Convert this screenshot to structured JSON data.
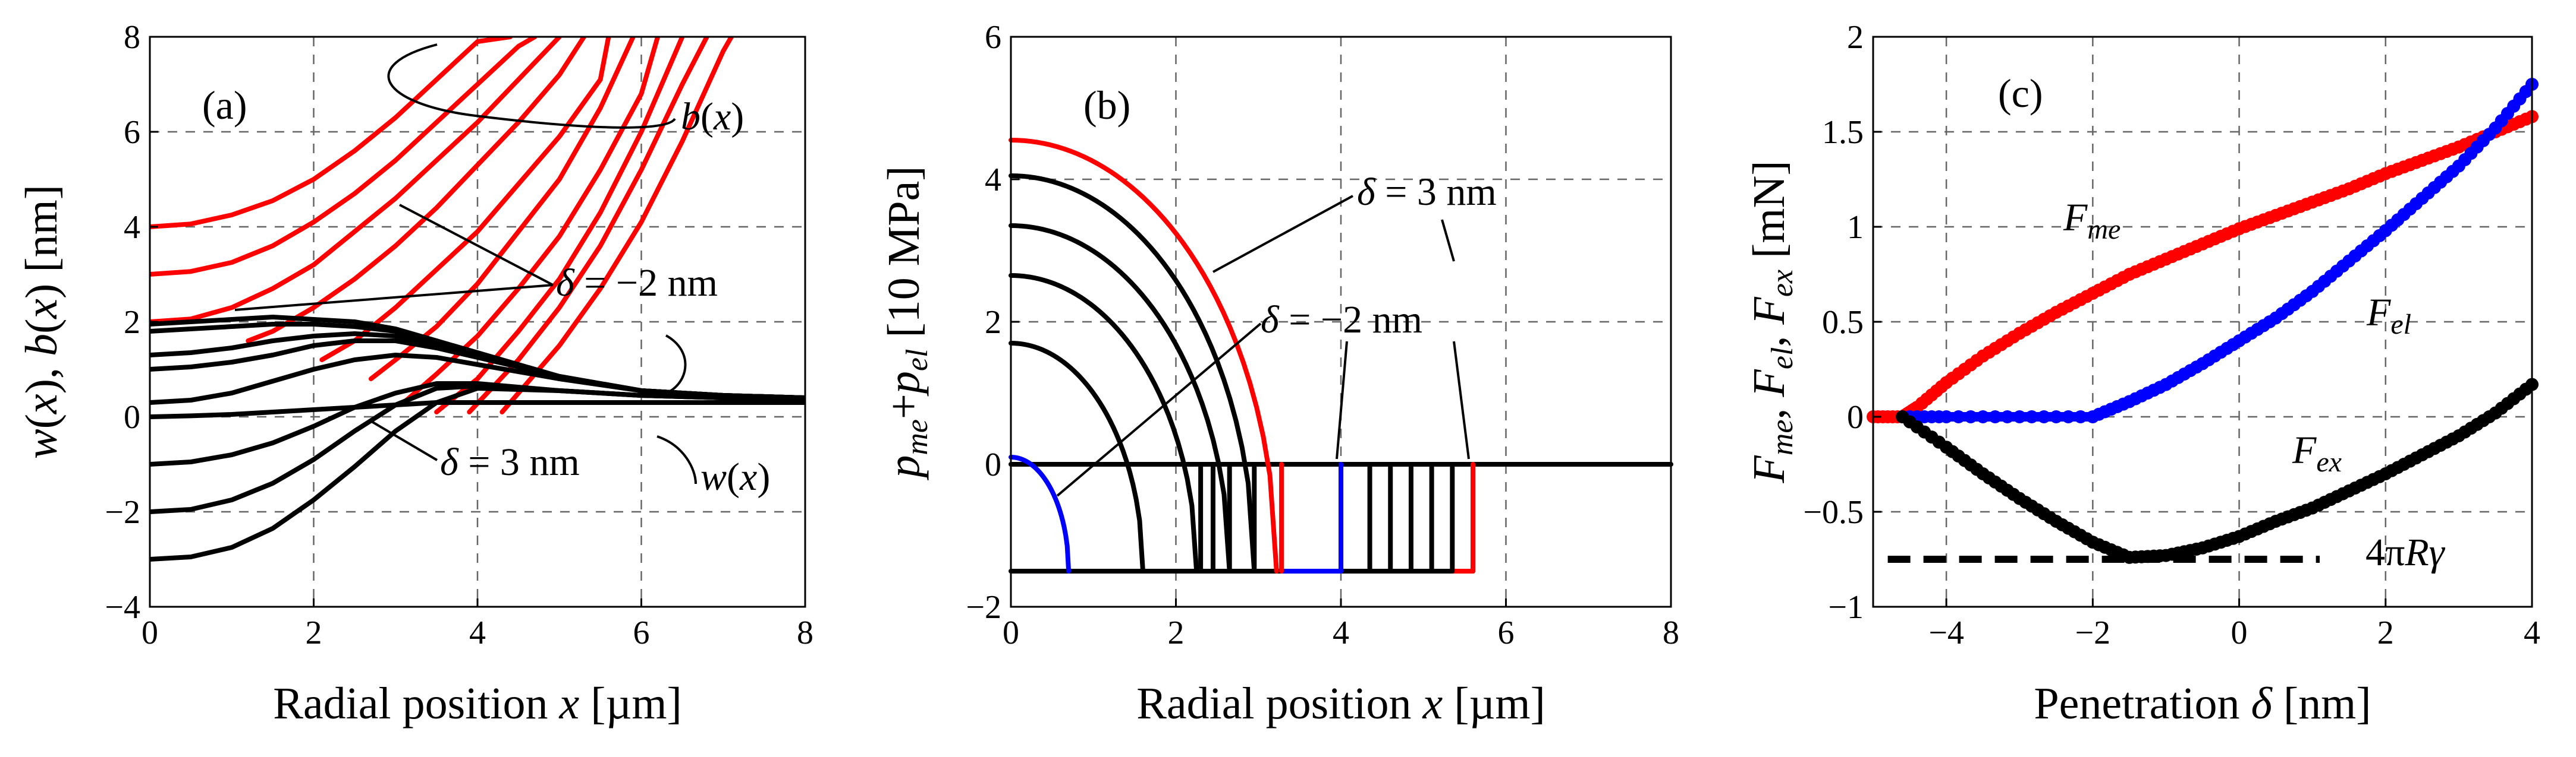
{
  "colors": {
    "red": "#ff0000",
    "black": "#000000",
    "blue": "#0000ff",
    "grid": "#666666"
  },
  "chart_data": [
    {
      "id": "a",
      "type": "line",
      "panel_label": "(a)",
      "xlabel": "Radial position x [µm]",
      "ylabel": "w(x), b(x) [nm]",
      "xlim": [
        0,
        8
      ],
      "ylim": [
        -4,
        8
      ],
      "xticks": [
        0,
        2,
        4,
        6,
        8
      ],
      "yticks": [
        -4,
        -2,
        0,
        2,
        4,
        6,
        8
      ],
      "xtick_labels": [
        "0",
        "2",
        "4",
        "6",
        "8"
      ],
      "ytick_labels": [
        "−4",
        "−2",
        "0",
        "2",
        "4",
        "6",
        "8"
      ],
      "annotations": {
        "delta_neg": "δ = −2 nm",
        "delta_pos": "δ = 3 nm",
        "b_label": "b(x)",
        "w_label": "w(x)"
      },
      "series": [
        {
          "name": "b(x) δ=-2 nm",
          "color": "red",
          "x": [
            0,
            0.5,
            1,
            1.5,
            2,
            2.5,
            3,
            3.5,
            4,
            4.4
          ],
          "y": [
            4,
            4.06,
            4.25,
            4.55,
            5.0,
            5.6,
            6.3,
            7.1,
            7.9,
            8
          ]
        },
        {
          "name": "b(x)",
          "color": "red",
          "x": [
            0,
            0.5,
            1,
            1.5,
            2,
            2.5,
            3,
            3.5,
            4,
            4.5,
            4.7
          ],
          "y": [
            3,
            3.06,
            3.25,
            3.6,
            4.1,
            4.7,
            5.4,
            6.2,
            7.0,
            7.8,
            8
          ]
        },
        {
          "name": "b(x)",
          "color": "red",
          "x": [
            0,
            0.5,
            1,
            1.5,
            2,
            2.5,
            3,
            3.5,
            4,
            4.5,
            5.0
          ],
          "y": [
            2,
            2.06,
            2.3,
            2.7,
            3.2,
            3.9,
            4.6,
            5.4,
            6.2,
            7.1,
            8
          ]
        },
        {
          "name": "b(x)",
          "color": "red",
          "x": [
            1.2,
            1.5,
            2,
            2.5,
            3,
            3.5,
            4,
            4.5,
            5,
            5.3
          ],
          "y": [
            1.6,
            1.8,
            2.3,
            2.9,
            3.6,
            4.4,
            5.3,
            6.2,
            7.2,
            8
          ]
        },
        {
          "name": "b(x)",
          "color": "red",
          "x": [
            2.1,
            2.5,
            3,
            3.5,
            4,
            4.5,
            5,
            5.5,
            5.6
          ],
          "y": [
            1.2,
            1.6,
            2.3,
            3.1,
            3.9,
            4.9,
            5.9,
            7.1,
            8
          ]
        },
        {
          "name": "b(x)",
          "color": "red",
          "x": [
            2.7,
            3,
            3.5,
            4,
            4.5,
            5,
            5.5,
            5.9
          ],
          "y": [
            0.8,
            1.2,
            1.9,
            2.8,
            3.9,
            5.0,
            6.5,
            8
          ]
        },
        {
          "name": "b(x)",
          "color": "red",
          "x": [
            3.1,
            3.5,
            4,
            4.5,
            5,
            5.5,
            6.0,
            6.2
          ],
          "y": [
            0.3,
            0.9,
            1.7,
            2.7,
            3.8,
            5.2,
            6.8,
            8
          ]
        },
        {
          "name": "b(x)",
          "color": "red",
          "x": [
            3.5,
            4,
            4.5,
            5,
            5.5,
            6.0,
            6.5
          ],
          "y": [
            0.1,
            0.8,
            1.8,
            2.9,
            4.3,
            6.0,
            8
          ]
        },
        {
          "name": "b(x)",
          "color": "red",
          "x": [
            3.9,
            4.5,
            5,
            5.5,
            6,
            6.5,
            6.8
          ],
          "y": [
            0.1,
            1.2,
            2.3,
            3.6,
            5.2,
            7.0,
            8
          ]
        },
        {
          "name": "b(x) δ=3 nm",
          "color": "red",
          "x": [
            4.3,
            5,
            5.5,
            6,
            6.5,
            7.0,
            7.1
          ],
          "y": [
            0.1,
            1.5,
            2.7,
            4.1,
            5.8,
            7.7,
            8
          ]
        },
        {
          "name": "w(x)",
          "color": "black",
          "x": [
            0,
            0.5,
            1,
            1.5,
            2,
            2.5,
            3,
            3.5,
            4,
            5,
            6,
            7,
            8
          ],
          "y": [
            1.95,
            2.0,
            2.05,
            2.1,
            2.05,
            2.0,
            1.85,
            1.6,
            1.3,
            0.8,
            0.55,
            0.45,
            0.4
          ]
        },
        {
          "name": "w(x)",
          "color": "black",
          "x": [
            0,
            0.5,
            1,
            1.5,
            2,
            2.5,
            3,
            3.5,
            4,
            5,
            6,
            7,
            8
          ],
          "y": [
            1.8,
            1.85,
            1.9,
            1.95,
            1.95,
            1.9,
            1.8,
            1.6,
            1.35,
            0.85,
            0.55,
            0.45,
            0.4
          ]
        },
        {
          "name": "w(x)",
          "color": "black",
          "x": [
            0,
            0.5,
            1,
            1.5,
            2,
            2.5,
            3,
            3.5,
            4,
            5,
            6,
            7,
            8
          ],
          "y": [
            1.3,
            1.35,
            1.45,
            1.6,
            1.7,
            1.75,
            1.7,
            1.55,
            1.3,
            0.85,
            0.55,
            0.45,
            0.4
          ]
        },
        {
          "name": "w(x)",
          "color": "black",
          "x": [
            0,
            0.5,
            1,
            1.5,
            2,
            2.5,
            3,
            3.5,
            4,
            5,
            6,
            7,
            8
          ],
          "y": [
            1.0,
            1.05,
            1.15,
            1.3,
            1.5,
            1.6,
            1.6,
            1.45,
            1.25,
            0.85,
            0.55,
            0.45,
            0.4
          ]
        },
        {
          "name": "w(x)",
          "color": "black",
          "x": [
            0,
            0.5,
            1,
            1.5,
            2,
            2.5,
            3,
            3.5,
            4,
            5,
            6,
            7,
            8
          ],
          "y": [
            0.3,
            0.35,
            0.5,
            0.75,
            1.0,
            1.2,
            1.3,
            1.25,
            1.1,
            0.8,
            0.55,
            0.45,
            0.4
          ]
        },
        {
          "name": "w(x)",
          "color": "black",
          "x": [
            0,
            0.5,
            1,
            1.5,
            2,
            2.5,
            3,
            3.5,
            4,
            5,
            6,
            7,
            8
          ],
          "y": [
            0,
            0.02,
            0.05,
            0.1,
            0.15,
            0.2,
            0.25,
            0.3,
            0.3,
            0.3,
            0.3,
            0.3,
            0.3
          ]
        },
        {
          "name": "w(x)",
          "color": "black",
          "x": [
            0,
            0.5,
            1,
            1.5,
            2,
            2.5,
            3,
            3.5,
            4,
            5,
            6,
            7,
            8
          ],
          "y": [
            -1.0,
            -0.95,
            -0.8,
            -0.55,
            -0.2,
            0.2,
            0.5,
            0.7,
            0.7,
            0.55,
            0.45,
            0.4,
            0.4
          ]
        },
        {
          "name": "w(x)",
          "color": "black",
          "x": [
            0,
            0.5,
            1,
            1.5,
            2,
            2.5,
            3,
            3.5,
            4,
            5,
            6,
            7,
            8
          ],
          "y": [
            -2.0,
            -1.95,
            -1.75,
            -1.4,
            -0.9,
            -0.3,
            0.25,
            0.6,
            0.65,
            0.55,
            0.45,
            0.4,
            0.4
          ]
        },
        {
          "name": "w(x) δ=3 nm",
          "color": "black",
          "x": [
            0,
            0.5,
            1,
            1.5,
            2,
            2.5,
            3,
            3.5,
            4,
            5,
            6,
            7,
            8
          ],
          "y": [
            -3.0,
            -2.95,
            -2.75,
            -2.35,
            -1.75,
            -1.05,
            -0.3,
            0.3,
            0.6,
            0.55,
            0.45,
            0.4,
            0.4
          ]
        }
      ]
    },
    {
      "id": "b",
      "type": "line",
      "panel_label": "(b)",
      "xlabel": "Radial position x [µm]",
      "ylabel": "pme+pel [10 MPa]",
      "xlim": [
        0,
        8
      ],
      "ylim": [
        -2,
        6
      ],
      "xticks": [
        0,
        2,
        4,
        6,
        8
      ],
      "yticks": [
        -2,
        0,
        2,
        4,
        6
      ],
      "xtick_labels": [
        "0",
        "2",
        "4",
        "6",
        "8"
      ],
      "ytick_labels": [
        "−2",
        "0",
        "2",
        "4",
        "6"
      ],
      "annotations": {
        "delta_pos": "δ = 3 nm",
        "delta_neg": "δ = −2 nm"
      },
      "baseline": {
        "x": [
          0,
          8
        ],
        "y": [
          0,
          0
        ],
        "color": "black"
      },
      "pressure_profiles": [
        {
          "p0": 4.55,
          "a": 3.22,
          "color": "red"
        },
        {
          "p0": 4.05,
          "a": 2.95,
          "color": "black"
        },
        {
          "p0": 3.35,
          "a": 2.65,
          "color": "black"
        },
        {
          "p0": 2.65,
          "a": 2.25,
          "color": "black"
        },
        {
          "p0": 1.7,
          "a": 1.6,
          "color": "black"
        },
        {
          "p0": 0.1,
          "a": 0.7,
          "color": "blue"
        }
      ],
      "pressure_floor": -1.5,
      "steps": [
        {
          "x0": 3.28,
          "x1": 3.28,
          "color": "red"
        },
        {
          "x0": 2.3,
          "x1": 2.3,
          "color": "black"
        },
        {
          "x0": 2.45,
          "x1": 2.45,
          "color": "black"
        },
        {
          "x0": 2.65,
          "x1": 2.65,
          "color": "black"
        },
        {
          "x0": 2.95,
          "x1": 2.95,
          "color": "black"
        },
        {
          "x0": 4.0,
          "x1": 4.0,
          "color": "blue"
        },
        {
          "x0": 4.35,
          "x1": 4.35,
          "color": "black"
        },
        {
          "x0": 4.6,
          "x1": 4.6,
          "color": "black"
        },
        {
          "x0": 4.85,
          "x1": 4.85,
          "color": "black"
        },
        {
          "x0": 5.1,
          "x1": 5.1,
          "color": "black"
        },
        {
          "x0": 5.35,
          "x1": 5.35,
          "color": "black"
        },
        {
          "x0": 5.6,
          "x1": 5.6,
          "color": "red"
        }
      ]
    },
    {
      "id": "c",
      "type": "scatter",
      "panel_label": "(c)",
      "xlabel": "Penetration δ [nm]",
      "ylabel": "Fme, Fel, Fex [mN]",
      "xlim": [
        -5,
        4
      ],
      "ylim": [
        -1,
        2
      ],
      "xticks": [
        -4,
        -2,
        0,
        2,
        4
      ],
      "yticks": [
        -1,
        -0.5,
        0,
        0.5,
        1,
        1.5,
        2
      ],
      "xtick_labels": [
        "−4",
        "−2",
        "0",
        "2",
        "4"
      ],
      "ytick_labels": [
        "−1",
        "−0.5",
        "0",
        "0.5",
        "1",
        "1.5",
        "2"
      ],
      "annotations": {
        "Fme": "Fme",
        "Fel": "Fel",
        "Fex": "Fex",
        "ref": "4πRγ"
      },
      "reference_line": {
        "y": -0.75,
        "x": [
          -4.8,
          1.1
        ]
      },
      "series": [
        {
          "name": "Fme",
          "color": "red",
          "x": [
            -5,
            -4.6,
            -4.4,
            -4,
            -3.5,
            -3,
            -2.5,
            -2,
            -1.5,
            -1,
            -0.5,
            0,
            0.5,
            1,
            1.5,
            2,
            2.5,
            3,
            3.5,
            4
          ],
          "y": [
            0,
            0,
            0.05,
            0.18,
            0.32,
            0.44,
            0.55,
            0.65,
            0.75,
            0.83,
            0.91,
            0.99,
            1.06,
            1.13,
            1.2,
            1.28,
            1.35,
            1.42,
            1.5,
            1.58
          ]
        },
        {
          "name": "Fel",
          "color": "blue",
          "x": [
            -4.6,
            -4,
            -3,
            -2,
            -1.5,
            -1,
            -0.5,
            0,
            0.5,
            1,
            1.5,
            2,
            2.5,
            3,
            3.5,
            4
          ],
          "y": [
            0,
            0,
            0,
            0,
            0.08,
            0.17,
            0.28,
            0.4,
            0.52,
            0.66,
            0.82,
            0.98,
            1.15,
            1.32,
            1.52,
            1.75
          ]
        },
        {
          "name": "Fex",
          "color": "black",
          "x": [
            -4.6,
            -4,
            -3.5,
            -3,
            -2.5,
            -2,
            -1.5,
            -1,
            -0.5,
            0,
            0.5,
            1,
            1.5,
            2,
            2.5,
            3,
            3.5,
            4
          ],
          "y": [
            0,
            -0.16,
            -0.3,
            -0.43,
            -0.55,
            -0.66,
            -0.74,
            -0.73,
            -0.69,
            -0.63,
            -0.55,
            -0.48,
            -0.39,
            -0.3,
            -0.2,
            -0.1,
            0.02,
            0.17
          ]
        }
      ]
    }
  ]
}
